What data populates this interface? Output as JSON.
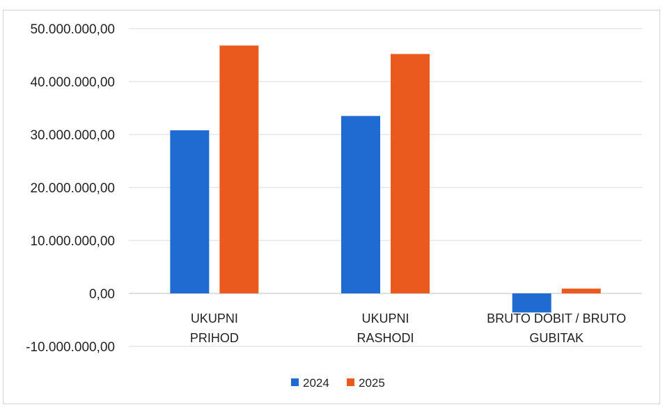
{
  "chart_data": {
    "type": "bar",
    "categories": [
      [
        "UKUPNI",
        "PRIHOD"
      ],
      [
        "UKUPNI",
        "RASHODI"
      ],
      [
        "BRUTO DOBIT / BRUTO",
        "GUBITAK"
      ]
    ],
    "series": [
      {
        "name": "2024",
        "color": "#1f6bd1",
        "values": [
          30800000,
          33500000,
          -3600000
        ]
      },
      {
        "name": "2025",
        "color": "#ea5a1f",
        "values": [
          46800000,
          45200000,
          900000
        ]
      }
    ],
    "ylim": [
      -10000000,
      50000000
    ],
    "yticks": [
      {
        "value": 50000000,
        "label": "50.000.000,00"
      },
      {
        "value": 40000000,
        "label": "40.000.000,00"
      },
      {
        "value": 30000000,
        "label": "30.000.000,00"
      },
      {
        "value": 20000000,
        "label": "20.000.000,00"
      },
      {
        "value": 10000000,
        "label": "10.000.000,00"
      },
      {
        "value": 0,
        "label": "0,00"
      },
      {
        "value": -10000000,
        "label": "-10.000.000,00"
      }
    ],
    "grid": true,
    "legend_position": "bottom",
    "title": "",
    "xlabel": "",
    "ylabel": ""
  }
}
